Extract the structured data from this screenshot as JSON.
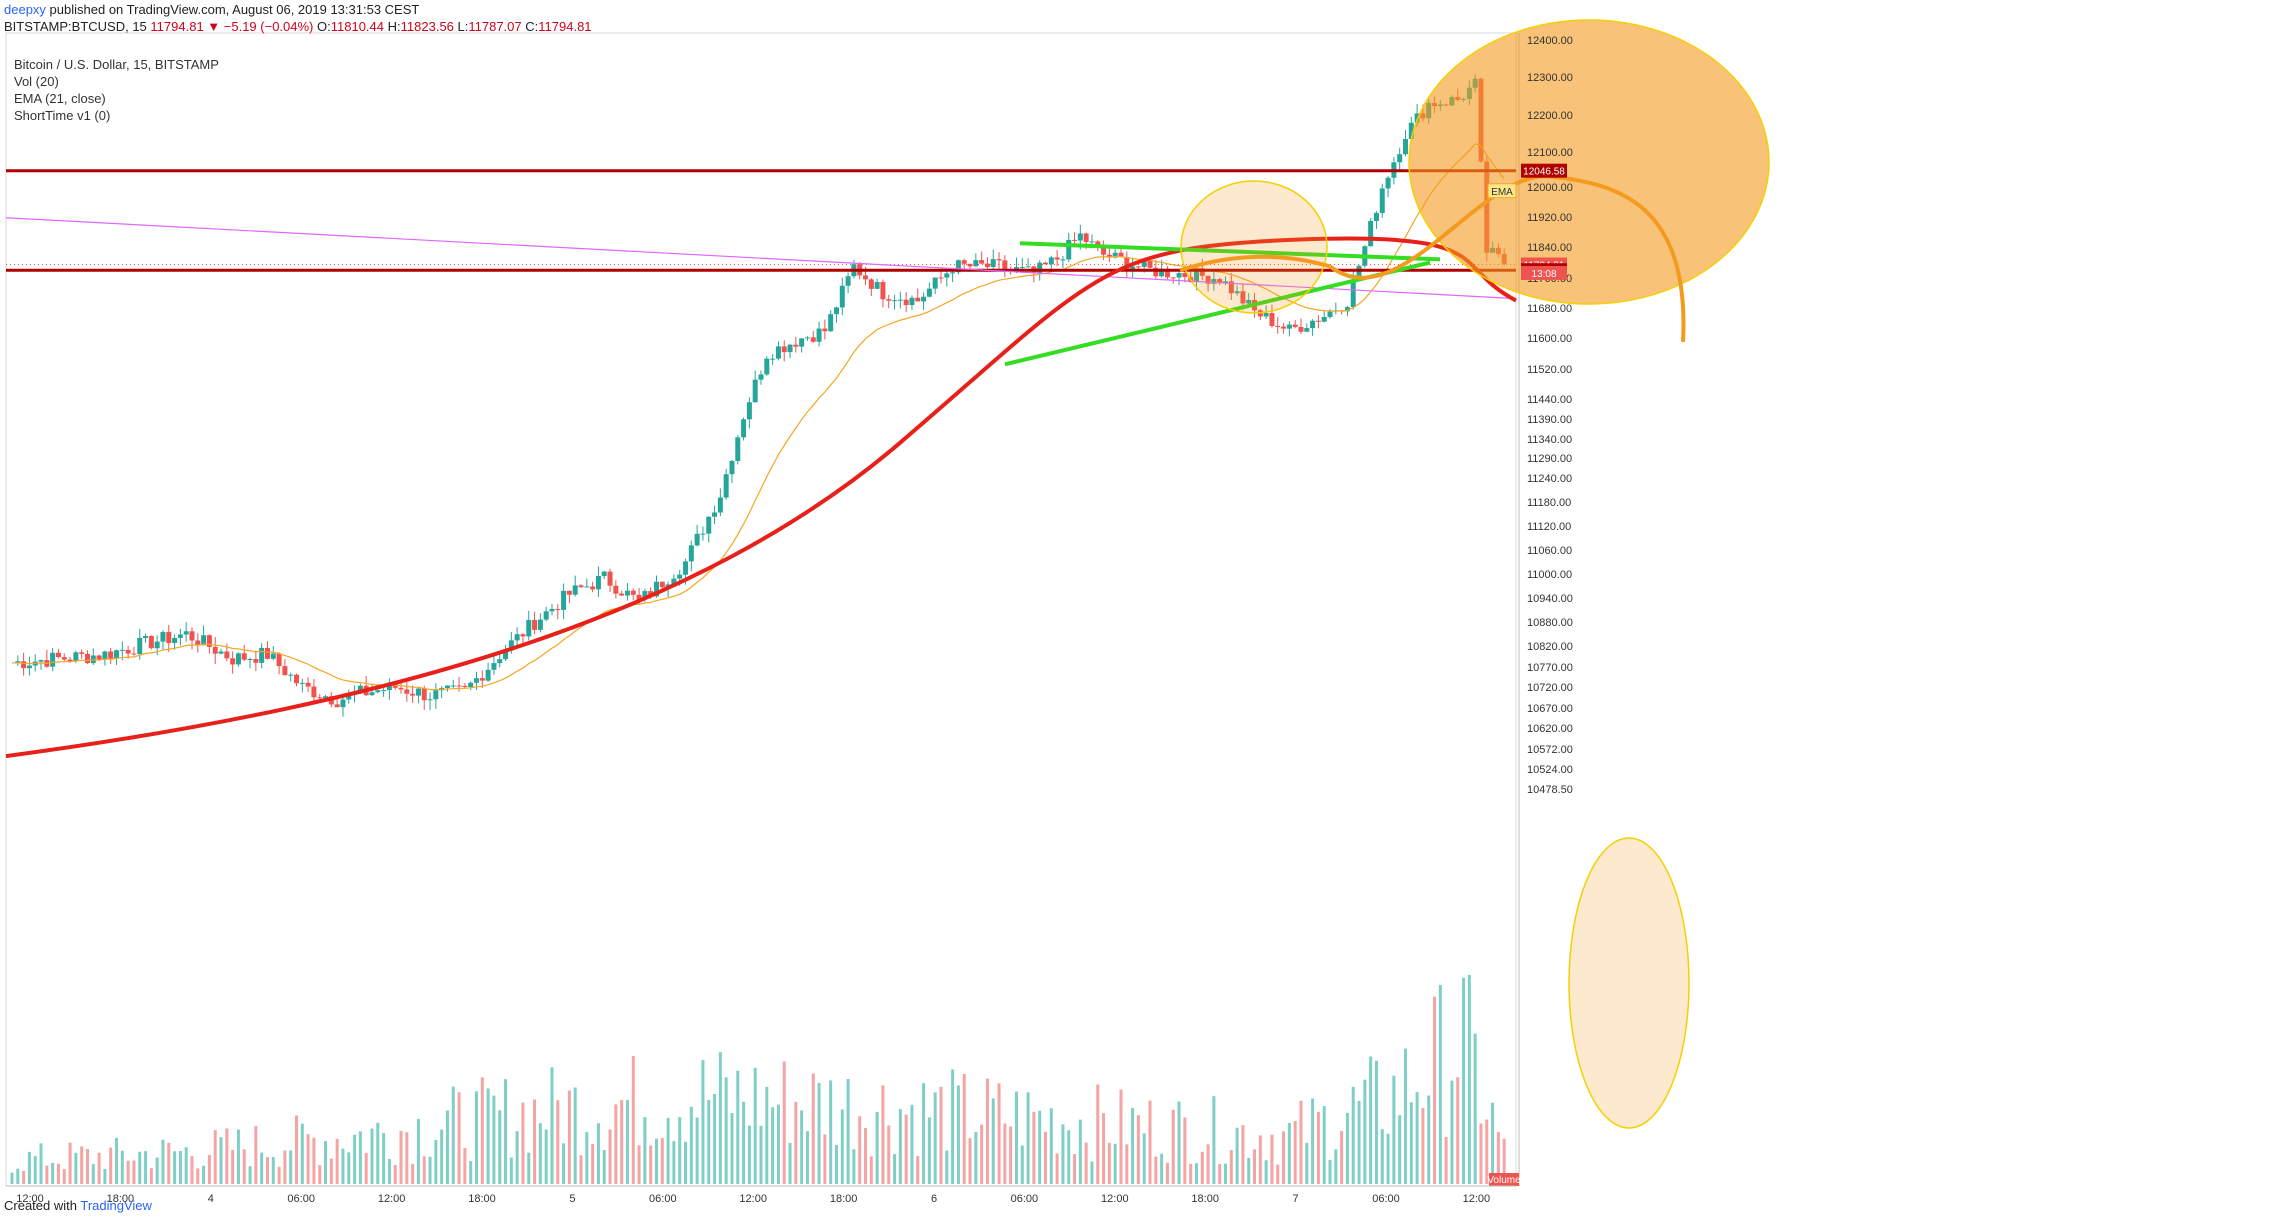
{
  "header": {
    "user": "deepxy",
    "published_text": "published on TradingView.com, August 06, 2019 13:31:53 CEST",
    "symbol": "BITSTAMP:BTCUSD, 15",
    "change": "11794.81 ▼ −5.19 (−0.04%)",
    "ohlc": [
      {
        "label": "O:",
        "value": "11810.44"
      },
      {
        "label": "H:",
        "value": "11823.56"
      },
      {
        "label": "L:",
        "value": "11787.07"
      },
      {
        "label": "C:",
        "value": "11794.81"
      }
    ]
  },
  "legend": {
    "title": "Bitcoin / U.S. Dollar, 15, BITSTAMP",
    "vol": "Vol (20)",
    "ema": "EMA (21, close)",
    "shorttime": "ShortTime v1 (0)"
  },
  "footer": {
    "created_with": "Created with",
    "brand": "TradingView"
  },
  "colors": {
    "up": "#26a69a",
    "down": "#ef5350",
    "level": "#b00000",
    "curve": "#e8201a",
    "ema": "#f5a623",
    "trend": "#33dd22",
    "magenta": "#e066ff",
    "orange": "#f39b1f"
  },
  "chart_data": {
    "type": "candlestick",
    "y_ticks": [
      "12400.00",
      "12300.00",
      "12200.00",
      "12100.00",
      "12000.00",
      "11920.00",
      "11840.00",
      "11760.00",
      "11680.00",
      "11600.00",
      "11520.00",
      "11440.00",
      "11390.00",
      "11340.00",
      "11290.00",
      "11240.00",
      "11180.00",
      "11120.00",
      "11060.00",
      "11000.00",
      "10940.00",
      "10880.00",
      "10820.00",
      "10770.00",
      "10720.00",
      "10670.00",
      "10620.00",
      "10572.00",
      "10524.00",
      "10478.50"
    ],
    "x_ticks": [
      "12:00",
      "18:00",
      "4",
      "06:00",
      "12:00",
      "18:00",
      "5",
      "06:00",
      "12:00",
      "18:00",
      "6",
      "06:00",
      "12:00",
      "18:00",
      "7",
      "06:00",
      "12:00"
    ],
    "price_labels": [
      {
        "text": "12046.58",
        "value": 12046.58,
        "color": "#b00000"
      },
      {
        "text": "11794.81",
        "value": 11794.81,
        "color": "#ef5350"
      },
      {
        "text": "11780.00",
        "value": 11780.0,
        "color": "#b00000"
      },
      {
        "text": "EMA",
        "value": 11990,
        "color": "#f5a623"
      },
      {
        "text": "13:08",
        "value": 11773,
        "color": "#ef5350"
      }
    ],
    "volume_label": "Volume",
    "horizontal_levels": [
      12046.58,
      11780.0
    ],
    "keypoints": [
      [
        0,
        10780
      ],
      [
        8,
        10790
      ],
      [
        16,
        10800
      ],
      [
        24,
        10830
      ],
      [
        30,
        10850
      ],
      [
        38,
        10790
      ],
      [
        44,
        10800
      ],
      [
        50,
        10720
      ],
      [
        56,
        10690
      ],
      [
        60,
        10705
      ],
      [
        66,
        10720
      ],
      [
        72,
        10700
      ],
      [
        78,
        10710
      ],
      [
        84,
        10800
      ],
      [
        90,
        10880
      ],
      [
        96,
        10950
      ],
      [
        102,
        10990
      ],
      [
        108,
        10930
      ],
      [
        116,
        11030
      ],
      [
        122,
        11200
      ],
      [
        126,
        11400
      ],
      [
        130,
        11560
      ],
      [
        136,
        11600
      ],
      [
        140,
        11620
      ],
      [
        145,
        11790
      ],
      [
        150,
        11720
      ],
      [
        156,
        11700
      ],
      [
        162,
        11790
      ],
      [
        170,
        11790
      ],
      [
        176,
        11770
      ],
      [
        180,
        11810
      ],
      [
        184,
        11870
      ],
      [
        188,
        11820
      ],
      [
        196,
        11780
      ],
      [
        202,
        11770
      ],
      [
        208,
        11760
      ],
      [
        214,
        11670
      ],
      [
        220,
        11620
      ],
      [
        226,
        11660
      ],
      [
        230,
        11700
      ],
      [
        233,
        11840
      ],
      [
        236,
        12000
      ],
      [
        240,
        12150
      ],
      [
        244,
        12230
      ],
      [
        249,
        12240
      ],
      [
        252,
        12280
      ],
      [
        254,
        11830
      ],
      [
        257,
        11800
      ]
    ],
    "volume_keypoints": [
      [
        0,
        0.15
      ],
      [
        30,
        0.2
      ],
      [
        60,
        0.3
      ],
      [
        90,
        0.45
      ],
      [
        120,
        0.55
      ],
      [
        140,
        0.5
      ],
      [
        160,
        0.45
      ],
      [
        200,
        0.35
      ],
      [
        220,
        0.3
      ],
      [
        238,
        0.55
      ],
      [
        250,
        0.9
      ],
      [
        255,
        0.4
      ],
      [
        257,
        0.2
      ]
    ],
    "series_count": 258
  }
}
